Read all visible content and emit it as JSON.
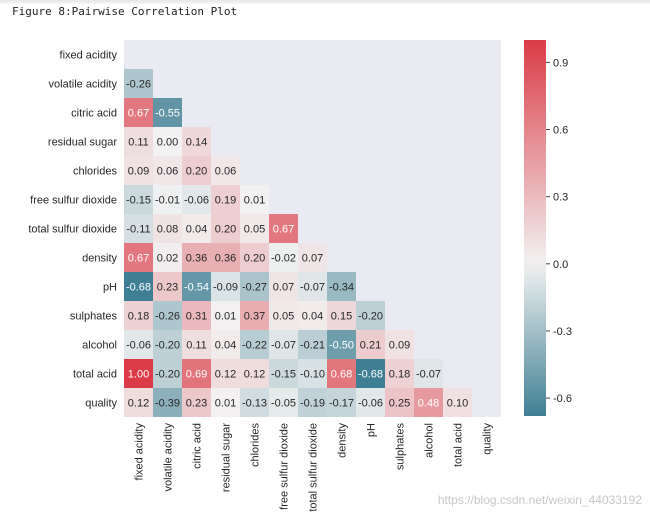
{
  "caption": "Figure 8:Pairwise Correlation Plot",
  "watermark": "https://blog.csdn.net/weixin_44033192",
  "colors": {
    "negative": "#3f7f93",
    "center": "#f2f2f2",
    "positive": "#da3b46",
    "masked_background": "#eaeaf2",
    "text_dark": "#262626",
    "text_light": "#ffffff"
  },
  "chart_data": {
    "type": "heatmap",
    "title": "",
    "variables": [
      "fixed acidity",
      "volatile acidity",
      "citric acid",
      "residual sugar",
      "chlorides",
      "free sulfur dioxide",
      "total sulfur dioxide",
      "density",
      "pH",
      "sulphates",
      "alcohol",
      "total acid",
      "quality"
    ],
    "mask": "upper triangle including diagonal",
    "lower_triangle": [
      [],
      [
        -0.26
      ],
      [
        0.67,
        -0.55
      ],
      [
        0.11,
        0.0,
        0.14
      ],
      [
        0.09,
        0.06,
        0.2,
        0.06
      ],
      [
        -0.15,
        -0.01,
        -0.06,
        0.19,
        0.01
      ],
      [
        -0.11,
        0.08,
        0.04,
        0.2,
        0.05,
        0.67
      ],
      [
        0.67,
        0.02,
        0.36,
        0.36,
        0.2,
        -0.02,
        0.07
      ],
      [
        -0.68,
        0.23,
        -0.54,
        -0.09,
        -0.27,
        0.07,
        -0.07,
        -0.34
      ],
      [
        0.18,
        -0.26,
        0.31,
        0.01,
        0.37,
        0.05,
        0.04,
        0.15,
        -0.2
      ],
      [
        -0.06,
        -0.2,
        0.11,
        0.04,
        -0.22,
        -0.07,
        -0.21,
        -0.5,
        0.21,
        0.09
      ],
      [
        1.0,
        -0.2,
        0.69,
        0.12,
        0.12,
        -0.15,
        -0.1,
        0.68,
        -0.68,
        0.18,
        -0.07
      ],
      [
        0.12,
        -0.39,
        0.23,
        0.01,
        -0.13,
        -0.05,
        -0.19,
        -0.17,
        -0.06,
        0.25,
        0.48,
        0.1
      ]
    ],
    "colorbar": {
      "range": [
        -0.68,
        1.0
      ],
      "ticks": [
        0.9,
        0.6,
        0.3,
        0.0,
        -0.3,
        -0.6
      ],
      "tick_labels": [
        "0.9",
        "0.6",
        "0.3",
        "0.0",
        "-0.3",
        "-0.6"
      ],
      "center": 0.0
    }
  }
}
